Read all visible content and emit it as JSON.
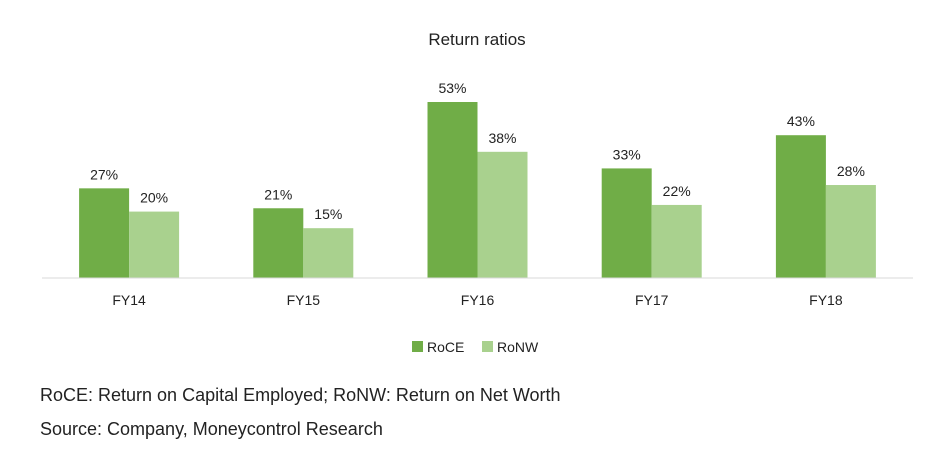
{
  "chart_data": {
    "type": "bar",
    "title": "Return ratios",
    "categories": [
      "FY14",
      "FY15",
      "FY16",
      "FY17",
      "FY18"
    ],
    "series": [
      {
        "name": "RoCE",
        "values": [
          27,
          21,
          53,
          33,
          43
        ],
        "labels": [
          "27%",
          "21%",
          "53%",
          "33%",
          "43%"
        ],
        "color": "#70ad47"
      },
      {
        "name": "RoNW",
        "values": [
          20,
          15,
          38,
          22,
          28
        ],
        "labels": [
          "20%",
          "15%",
          "38%",
          "22%",
          "28%"
        ],
        "color": "#a9d18e"
      }
    ],
    "ylim": [
      0,
      53
    ],
    "grid": false,
    "legend": "bottom"
  },
  "footnotes": {
    "definitions": "RoCE: Return on Capital Employed; RoNW: Return on Net Worth",
    "source": "Source: Company, Moneycontrol Research"
  }
}
